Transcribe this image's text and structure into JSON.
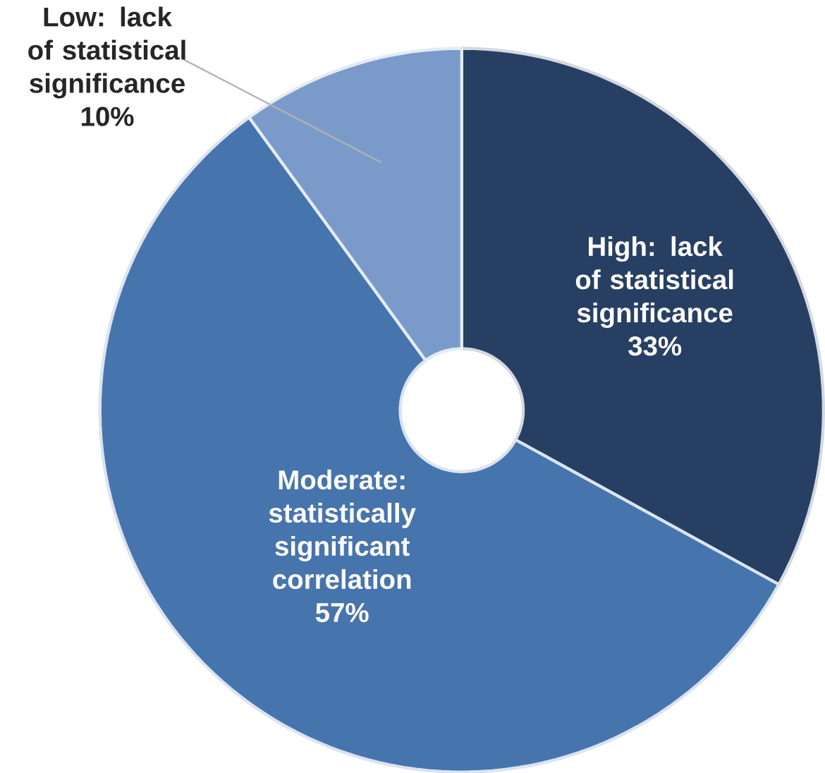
{
  "chart_data": {
    "type": "donut",
    "categories": [
      "High: lack of statistical significance",
      "Moderate: statistically significant correlation",
      "Low: lack of statistical significance"
    ],
    "values": [
      33,
      57,
      10
    ],
    "value_labels": [
      "33%",
      "57%",
      "10%"
    ],
    "colors": [
      "#263f62",
      "#4674ad",
      "#7a9bca"
    ]
  }
}
